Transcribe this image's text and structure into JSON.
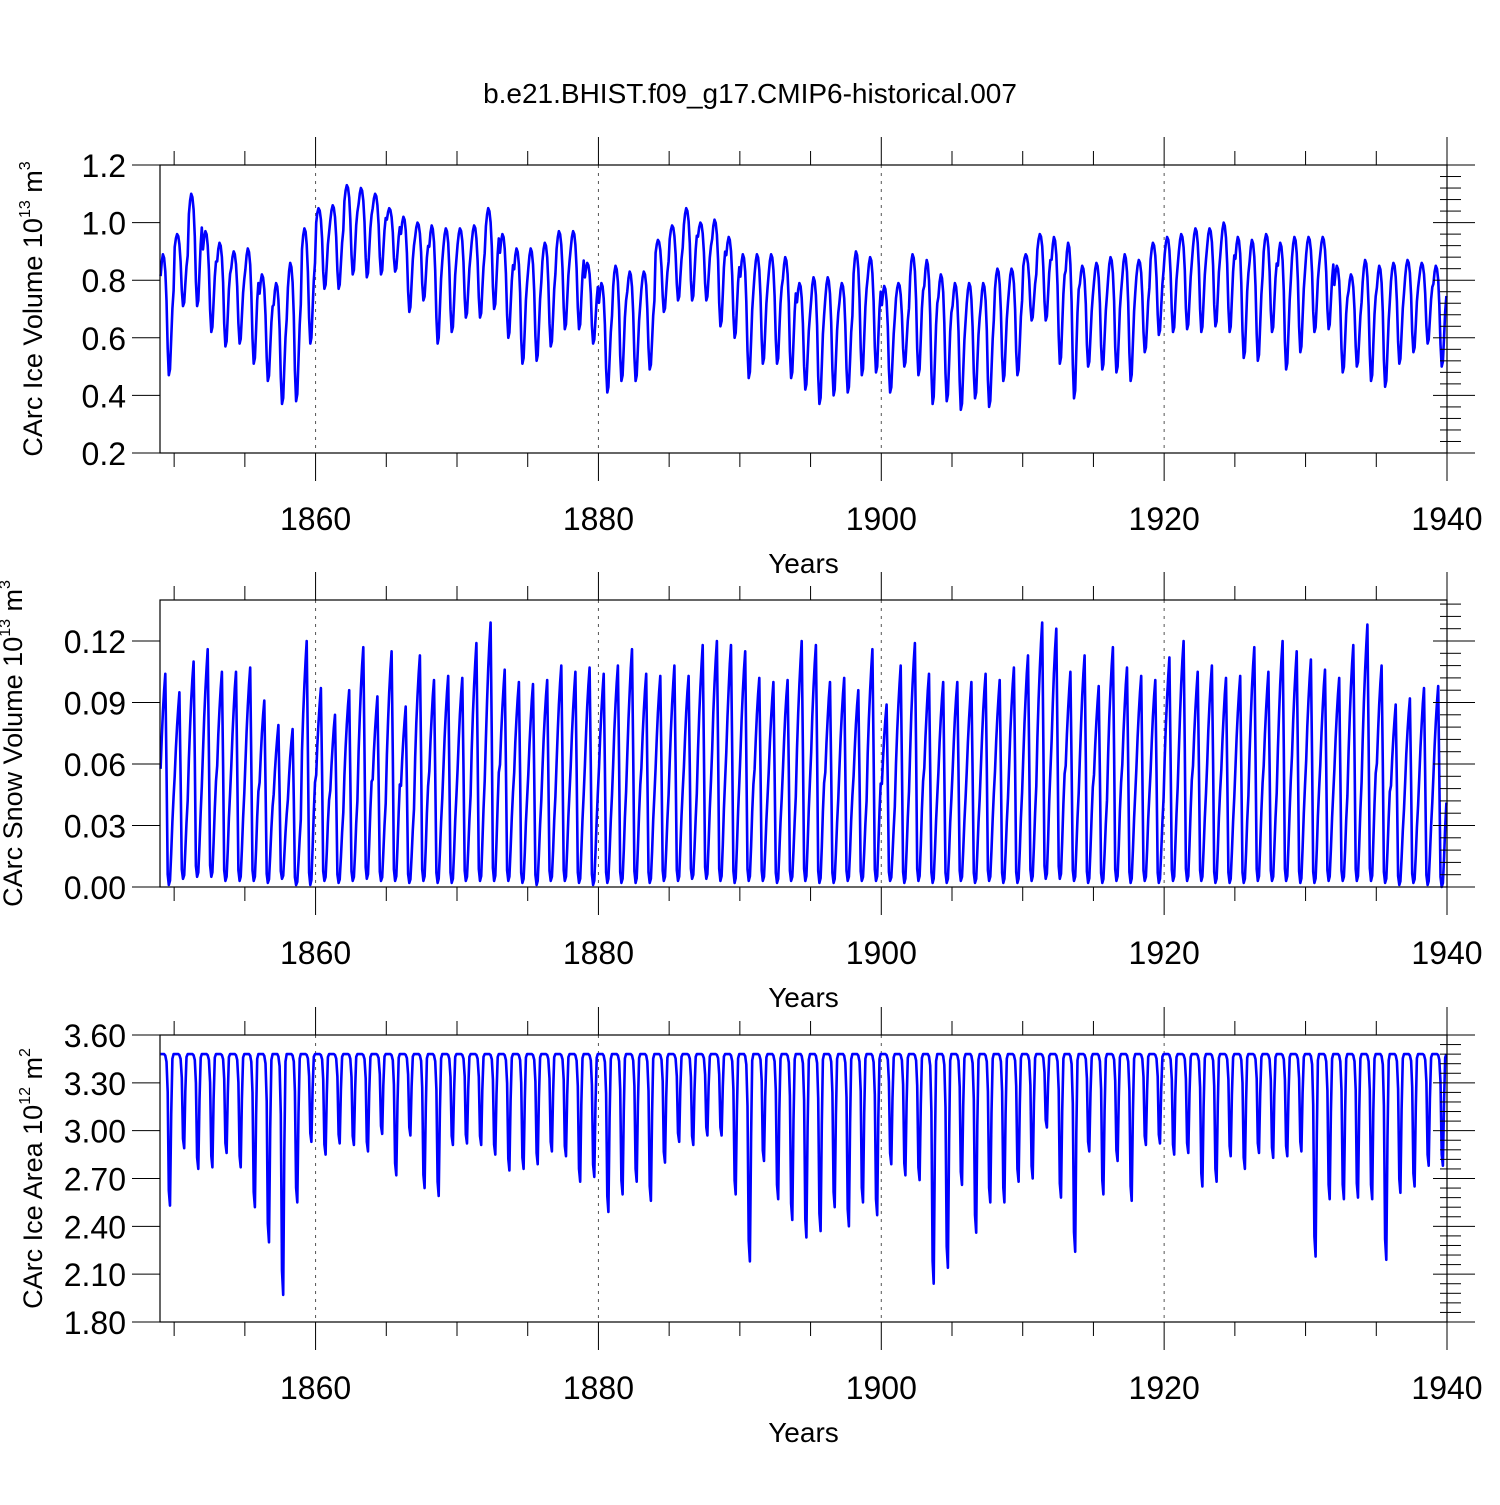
{
  "figure": {
    "title": "b.e21.BHIST.f09_g17.CMIP6-historical.007",
    "line_color": "#0000ff",
    "axis_color": "#000000"
  },
  "chart_data": [
    {
      "type": "line",
      "id": "ice-volume",
      "title": "",
      "ylabel": "CArc Ice Volume 10",
      "ylabel_exp": "13",
      "ylabel_unit": " m",
      "ylabel_unit_exp": "3",
      "xlabel": "Years",
      "xlim": [
        1849,
        1940
      ],
      "ylim": [
        0.2,
        1.2
      ],
      "yticks": [
        0.2,
        0.4,
        0.6,
        0.8,
        1.0,
        1.2
      ],
      "ytick_labels": [
        "0.2",
        "0.4",
        "0.6",
        "0.8",
        "1.0",
        "1.2"
      ],
      "xticks": [
        1860,
        1880,
        1900,
        1920,
        1940
      ],
      "xtick_labels": [
        "1860",
        "1880",
        "1900",
        "1920",
        "1940"
      ],
      "grid": "vertical-dashed",
      "yearly_max": [
        0.89,
        0.96,
        1.1,
        0.97,
        0.93,
        0.9,
        0.91,
        0.82,
        0.79,
        0.86,
        0.98,
        1.05,
        1.06,
        1.13,
        1.12,
        1.1,
        1.05,
        1.02,
        1.0,
        0.99,
        0.98,
        0.98,
        0.99,
        1.05,
        0.96,
        0.91,
        0.91,
        0.93,
        0.97,
        0.97,
        0.86,
        0.79,
        0.85,
        0.83,
        0.83,
        0.94,
        0.99,
        1.05,
        1.0,
        1.01,
        0.95,
        0.89,
        0.89,
        0.89,
        0.88,
        0.79,
        0.81,
        0.81,
        0.79,
        0.9,
        0.88,
        0.78,
        0.79,
        0.89,
        0.87,
        0.82,
        0.79,
        0.79,
        0.79,
        0.84,
        0.84,
        0.89,
        0.96,
        0.95,
        0.93,
        0.85,
        0.86,
        0.88,
        0.89,
        0.87,
        0.93,
        0.95,
        0.96,
        0.98,
        0.98,
        1.0,
        0.95,
        0.94,
        0.96,
        0.93,
        0.95,
        0.95,
        0.95,
        0.85,
        0.82,
        0.87,
        0.85,
        0.86,
        0.87,
        0.86,
        0.85
      ],
      "yearly_min": [
        0.47,
        0.71,
        0.71,
        0.62,
        0.57,
        0.58,
        0.51,
        0.45,
        0.37,
        0.38,
        0.58,
        0.77,
        0.77,
        0.82,
        0.81,
        0.82,
        0.83,
        0.69,
        0.73,
        0.58,
        0.62,
        0.67,
        0.67,
        0.7,
        0.6,
        0.51,
        0.52,
        0.57,
        0.63,
        0.63,
        0.58,
        0.41,
        0.45,
        0.45,
        0.49,
        0.69,
        0.73,
        0.73,
        0.73,
        0.64,
        0.6,
        0.46,
        0.51,
        0.51,
        0.46,
        0.42,
        0.37,
        0.4,
        0.41,
        0.47,
        0.48,
        0.41,
        0.5,
        0.47,
        0.37,
        0.38,
        0.35,
        0.39,
        0.36,
        0.45,
        0.47,
        0.66,
        0.66,
        0.51,
        0.39,
        0.5,
        0.49,
        0.48,
        0.45,
        0.55,
        0.61,
        0.62,
        0.63,
        0.62,
        0.64,
        0.62,
        0.53,
        0.52,
        0.62,
        0.49,
        0.55,
        0.62,
        0.63,
        0.48,
        0.5,
        0.45,
        0.43,
        0.51,
        0.55,
        0.58,
        0.5
      ]
    },
    {
      "type": "line",
      "id": "snow-volume",
      "title": "",
      "ylabel": "CArc Snow Volume 10",
      "ylabel_exp": "13",
      "ylabel_unit": " m",
      "ylabel_unit_exp": "3",
      "xlabel": "Years",
      "xlim": [
        1849,
        1940
      ],
      "ylim": [
        0.0,
        0.14
      ],
      "yticks": [
        0.0,
        0.03,
        0.06,
        0.09,
        0.12
      ],
      "ytick_labels": [
        "0.00",
        "0.03",
        "0.06",
        "0.09",
        "0.12"
      ],
      "xticks": [
        1860,
        1880,
        1900,
        1920,
        1940
      ],
      "xtick_labels": [
        "1860",
        "1880",
        "1900",
        "1920",
        "1940"
      ],
      "grid": "vertical-dashed",
      "yearly_max": [
        0.104,
        0.095,
        0.11,
        0.116,
        0.105,
        0.105,
        0.107,
        0.091,
        0.079,
        0.077,
        0.12,
        0.097,
        0.084,
        0.096,
        0.117,
        0.093,
        0.115,
        0.088,
        0.113,
        0.101,
        0.103,
        0.102,
        0.119,
        0.129,
        0.106,
        0.1,
        0.099,
        0.101,
        0.108,
        0.105,
        0.107,
        0.104,
        0.108,
        0.116,
        0.104,
        0.103,
        0.108,
        0.103,
        0.118,
        0.12,
        0.118,
        0.115,
        0.102,
        0.1,
        0.101,
        0.12,
        0.118,
        0.1,
        0.102,
        0.096,
        0.116,
        0.089,
        0.108,
        0.119,
        0.104,
        0.1,
        0.1,
        0.1,
        0.104,
        0.101,
        0.107,
        0.113,
        0.129,
        0.126,
        0.105,
        0.113,
        0.098,
        0.117,
        0.107,
        0.103,
        0.101,
        0.112,
        0.12,
        0.105,
        0.108,
        0.102,
        0.103,
        0.117,
        0.105,
        0.12,
        0.115,
        0.111,
        0.106,
        0.102,
        0.118,
        0.128,
        0.108,
        0.089,
        0.092,
        0.097,
        0.098
      ],
      "yearly_min": [
        0.001,
        0.004,
        0.005,
        0.005,
        0.003,
        0.003,
        0.003,
        0.002,
        0.004,
        0.001,
        0.001,
        0.003,
        0.002,
        0.003,
        0.004,
        0.003,
        0.003,
        0.002,
        0.003,
        0.002,
        0.002,
        0.003,
        0.003,
        0.003,
        0.003,
        0.002,
        0.001,
        0.003,
        0.003,
        0.002,
        0.001,
        0.002,
        0.002,
        0.002,
        0.002,
        0.003,
        0.003,
        0.004,
        0.004,
        0.003,
        0.002,
        0.003,
        0.003,
        0.002,
        0.003,
        0.003,
        0.002,
        0.002,
        0.003,
        0.003,
        0.003,
        0.003,
        0.002,
        0.003,
        0.002,
        0.002,
        0.003,
        0.002,
        0.003,
        0.002,
        0.002,
        0.003,
        0.004,
        0.004,
        0.003,
        0.002,
        0.002,
        0.003,
        0.002,
        0.003,
        0.002,
        0.003,
        0.003,
        0.003,
        0.002,
        0.002,
        0.002,
        0.003,
        0.003,
        0.003,
        0.002,
        0.002,
        0.003,
        0.003,
        0.003,
        0.003,
        0.002,
        0.001,
        0.002,
        0.001,
        0.0
      ]
    },
    {
      "type": "line",
      "id": "ice-area",
      "title": "",
      "ylabel": "CArc Ice Area 10",
      "ylabel_exp": "12",
      "ylabel_unit": " m",
      "ylabel_unit_exp": "2",
      "xlabel": "Years",
      "xlim": [
        1849,
        1940
      ],
      "ylim": [
        1.8,
        3.6
      ],
      "yticks": [
        1.8,
        2.1,
        2.4,
        2.7,
        3.0,
        3.3,
        3.6
      ],
      "ytick_labels": [
        "1.80",
        "2.10",
        "2.40",
        "2.70",
        "3.00",
        "3.30",
        "3.60"
      ],
      "xticks": [
        1860,
        1880,
        1900,
        1920,
        1940
      ],
      "xtick_labels": [
        "1860",
        "1880",
        "1900",
        "1920",
        "1940"
      ],
      "grid": "vertical-dashed",
      "yearly_max": [
        3.48,
        3.48,
        3.48,
        3.48,
        3.48,
        3.48,
        3.48,
        3.48,
        3.48,
        3.48,
        3.48,
        3.48,
        3.48,
        3.48,
        3.48,
        3.48,
        3.48,
        3.48,
        3.48,
        3.48,
        3.48,
        3.48,
        3.48,
        3.48,
        3.48,
        3.48,
        3.48,
        3.48,
        3.48,
        3.48,
        3.48,
        3.48,
        3.48,
        3.48,
        3.48,
        3.48,
        3.48,
        3.48,
        3.48,
        3.48,
        3.48,
        3.48,
        3.48,
        3.48,
        3.48,
        3.48,
        3.48,
        3.48,
        3.48,
        3.48,
        3.48,
        3.48,
        3.48,
        3.48,
        3.48,
        3.48,
        3.48,
        3.48,
        3.48,
        3.48,
        3.48,
        3.48,
        3.48,
        3.48,
        3.48,
        3.48,
        3.48,
        3.48,
        3.48,
        3.48,
        3.48,
        3.48,
        3.48,
        3.48,
        3.48,
        3.48,
        3.48,
        3.48,
        3.48,
        3.48,
        3.48,
        3.48,
        3.48,
        3.48,
        3.48,
        3.48,
        3.48,
        3.48,
        3.48,
        3.48,
        3.48
      ],
      "yearly_min": [
        2.53,
        2.89,
        2.76,
        2.77,
        2.86,
        2.77,
        2.52,
        2.3,
        1.97,
        2.55,
        2.93,
        2.85,
        2.92,
        2.91,
        2.87,
        2.98,
        2.72,
        2.97,
        2.64,
        2.59,
        2.91,
        2.92,
        2.91,
        2.85,
        2.75,
        2.76,
        2.79,
        2.87,
        2.84,
        2.68,
        2.71,
        2.49,
        2.6,
        2.68,
        2.56,
        2.8,
        2.93,
        2.91,
        2.97,
        2.97,
        2.6,
        2.18,
        2.81,
        2.57,
        2.44,
        2.33,
        2.37,
        2.52,
        2.4,
        2.55,
        2.47,
        2.79,
        2.72,
        2.69,
        2.04,
        2.14,
        2.66,
        2.36,
        2.55,
        2.55,
        2.68,
        2.7,
        3.02,
        2.58,
        2.24,
        2.87,
        2.6,
        2.81,
        2.56,
        2.91,
        2.92,
        2.85,
        2.86,
        2.65,
        2.68,
        2.84,
        2.76,
        2.86,
        2.83,
        2.84,
        2.87,
        2.21,
        2.57,
        2.57,
        2.58,
        2.57,
        2.19,
        2.61,
        2.65,
        2.78,
        2.78
      ]
    }
  ]
}
